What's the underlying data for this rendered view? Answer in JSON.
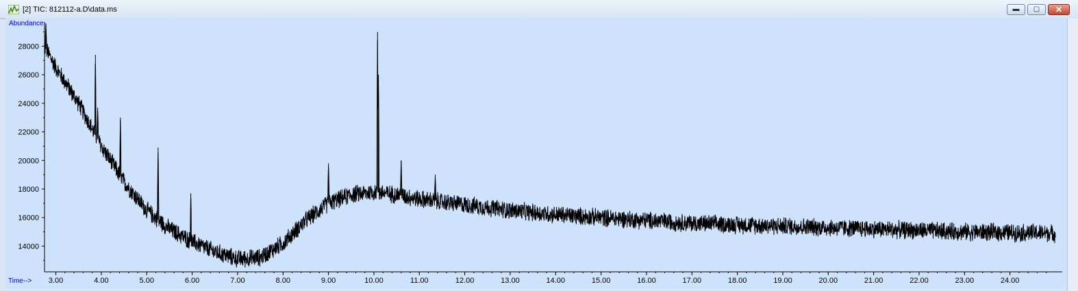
{
  "window": {
    "title": "[2] TIC: 812112-a.D\\data.ms"
  },
  "controls": {
    "minimize": "▬",
    "maximize": "▢",
    "close": "✕"
  },
  "colors": {
    "plot_bg": "#cfe2fb",
    "trace": "#000000",
    "axis_label": "#0000cc"
  },
  "chart_data": {
    "type": "line",
    "title": "TIC: 812112-a.D\\data.ms",
    "ylabel": "Abundance",
    "xlabel": "Time-->",
    "xlim": [
      2.75,
      25.0
    ],
    "ylim": [
      12200,
      29700
    ],
    "x_ticks": [
      3,
      4,
      5,
      6,
      7,
      8,
      9,
      10,
      11,
      12,
      13,
      14,
      15,
      16,
      17,
      18,
      19,
      20,
      21,
      22,
      23,
      24
    ],
    "x_tick_labels": [
      "3.00",
      "4.00",
      "5.00",
      "6.00",
      "7.00",
      "8.00",
      "9.00",
      "10.00",
      "11.00",
      "12.00",
      "13.00",
      "14.00",
      "15.00",
      "16.00",
      "17.00",
      "18.00",
      "19.00",
      "20.00",
      "21.00",
      "22.00",
      "23.00",
      "24.00"
    ],
    "y_ticks": [
      14000,
      16000,
      18000,
      20000,
      22000,
      24000,
      26000,
      28000
    ],
    "y_tick_labels": [
      "14000",
      "16000",
      "18000",
      "20000",
      "22000",
      "24000",
      "26000",
      "28000"
    ],
    "baseline": {
      "x": [
        2.75,
        3.0,
        3.5,
        4.0,
        4.5,
        5.0,
        5.5,
        6.0,
        6.5,
        7.0,
        7.5,
        8.0,
        8.5,
        9.0,
        9.5,
        10.0,
        10.5,
        11.0,
        11.5,
        12.0,
        13.0,
        14.0,
        15.0,
        16.0,
        17.0,
        18.0,
        19.0,
        20.0,
        21.0,
        22.0,
        23.0,
        24.0,
        25.0
      ],
      "y": [
        28000,
        26500,
        24000,
        21000,
        18500,
        16500,
        15200,
        14300,
        13600,
        13100,
        13200,
        14200,
        15800,
        17000,
        17600,
        17800,
        17600,
        17300,
        17100,
        16900,
        16500,
        16200,
        16000,
        15800,
        15600,
        15500,
        15400,
        15300,
        15200,
        15100,
        15000,
        14950,
        14900
      ]
    },
    "peaks": [
      {
        "x": 2.78,
        "y": 29600
      },
      {
        "x": 3.87,
        "y": 27400
      },
      {
        "x": 3.92,
        "y": 23700
      },
      {
        "x": 4.42,
        "y": 23000
      },
      {
        "x": 5.25,
        "y": 20900
      },
      {
        "x": 5.97,
        "y": 17700
      },
      {
        "x": 9.0,
        "y": 19800
      },
      {
        "x": 10.08,
        "y": 29000
      },
      {
        "x": 10.1,
        "y": 26000
      },
      {
        "x": 10.6,
        "y": 20000
      },
      {
        "x": 11.35,
        "y": 19000
      }
    ],
    "noise_amplitude": 700,
    "sample_count": 4400
  }
}
